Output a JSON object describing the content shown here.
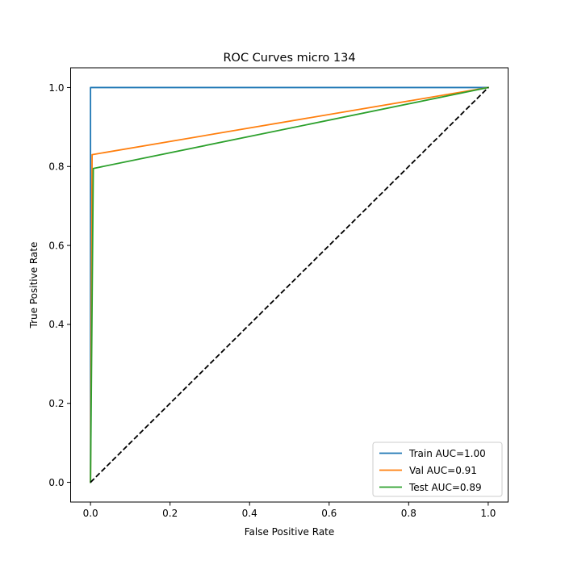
{
  "chart_data": {
    "type": "line",
    "title": "ROC Curves micro 134",
    "xlabel": "False Positive Rate",
    "ylabel": "True Positive Rate",
    "xlim": [
      -0.05,
      1.05
    ],
    "ylim": [
      -0.05,
      1.05
    ],
    "xticks": [
      0.0,
      0.2,
      0.4,
      0.6,
      0.8,
      1.0
    ],
    "yticks": [
      0.0,
      0.2,
      0.4,
      0.6,
      0.8,
      1.0
    ],
    "xtick_labels": [
      "0.0",
      "0.2",
      "0.4",
      "0.6",
      "0.8",
      "1.0"
    ],
    "ytick_labels": [
      "0.0",
      "0.2",
      "0.4",
      "0.6",
      "0.8",
      "1.0"
    ],
    "grid": false,
    "legend_position": "lower-right",
    "series": [
      {
        "name": "Train AUC=1.00",
        "color": "#1f77b4",
        "x": [
          0.0,
          0.0,
          1.0
        ],
        "y": [
          0.0,
          1.0,
          1.0
        ]
      },
      {
        "name": "Val AUC=0.91",
        "color": "#ff7f0e",
        "x": [
          0.0,
          0.004,
          1.0
        ],
        "y": [
          0.0,
          0.83,
          1.0
        ]
      },
      {
        "name": "Test AUC=0.89",
        "color": "#2ca02c",
        "x": [
          0.0,
          0.007,
          1.0
        ],
        "y": [
          0.0,
          0.795,
          1.0
        ]
      }
    ],
    "reference_line": {
      "color": "#000000",
      "style": "dashed",
      "x": [
        0.0,
        1.0
      ],
      "y": [
        0.0,
        1.0
      ]
    }
  }
}
